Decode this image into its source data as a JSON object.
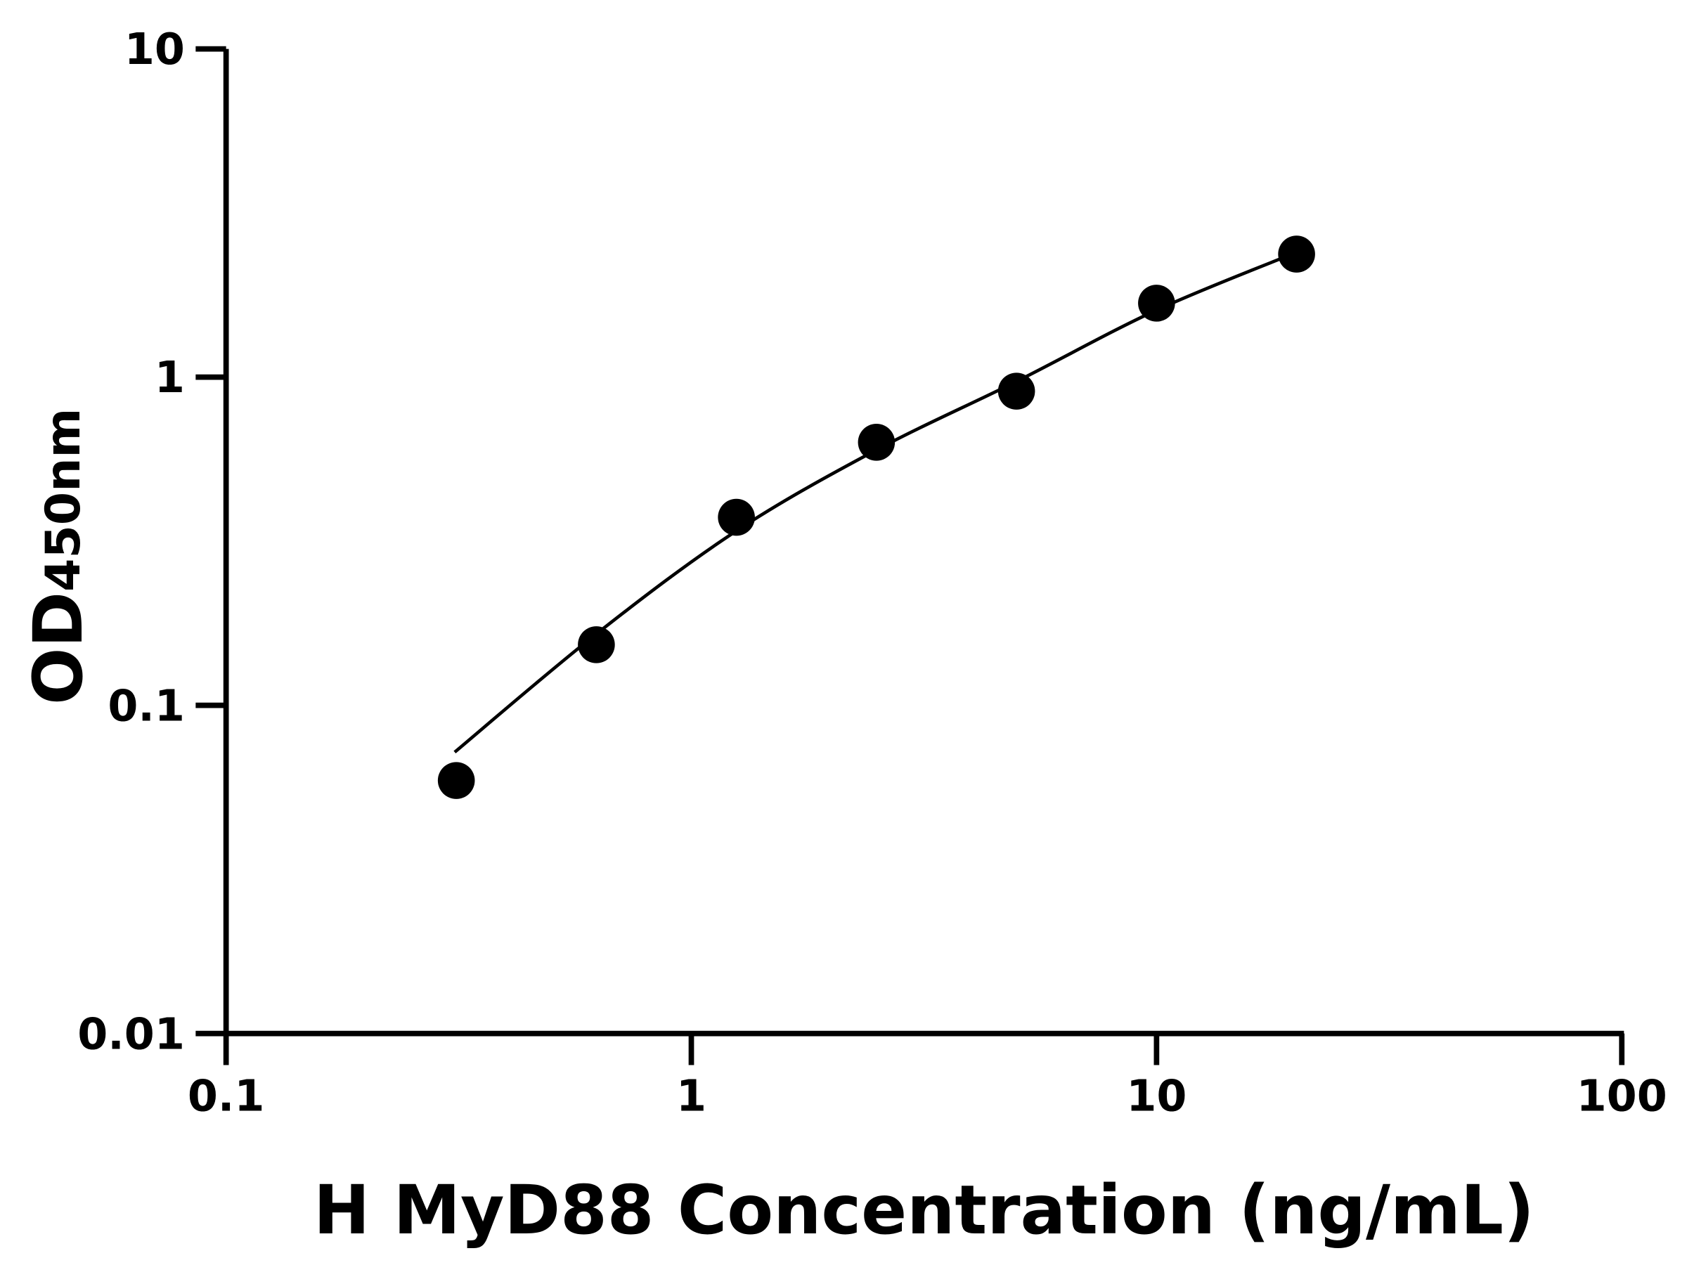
{
  "chart_data": {
    "type": "scatter",
    "title": "",
    "xlabel": "H MyD88 Concentration (ng/mL)",
    "ylabel_main": "OD",
    "ylabel_sub": "450nm",
    "x_scale": "log",
    "y_scale": "log",
    "xlim": [
      0.1,
      100
    ],
    "ylim": [
      0.01,
      10
    ],
    "x_ticks": [
      {
        "value": 0.1,
        "label": "0.1"
      },
      {
        "value": 1,
        "label": "1"
      },
      {
        "value": 10,
        "label": "10"
      },
      {
        "value": 100,
        "label": "100"
      }
    ],
    "y_ticks": [
      {
        "value": 0.01,
        "label": "0.01"
      },
      {
        "value": 0.1,
        "label": "0.1"
      },
      {
        "value": 1,
        "label": "1"
      },
      {
        "value": 10,
        "label": "10"
      }
    ],
    "grid": false,
    "points": [
      {
        "x": 0.3125,
        "y": 0.059
      },
      {
        "x": 0.625,
        "y": 0.153
      },
      {
        "x": 1.25,
        "y": 0.374
      },
      {
        "x": 2.5,
        "y": 0.633
      },
      {
        "x": 5,
        "y": 0.906
      },
      {
        "x": 10,
        "y": 1.68
      },
      {
        "x": 20,
        "y": 2.37
      }
    ],
    "fit_curve": [
      {
        "x": 0.31,
        "y": 0.072
      },
      {
        "x": 0.625,
        "y": 0.165
      },
      {
        "x": 1.25,
        "y": 0.34
      },
      {
        "x": 2.5,
        "y": 0.6
      },
      {
        "x": 5,
        "y": 0.97
      },
      {
        "x": 10,
        "y": 1.6
      },
      {
        "x": 20,
        "y": 2.4
      }
    ],
    "color": "#000000"
  }
}
